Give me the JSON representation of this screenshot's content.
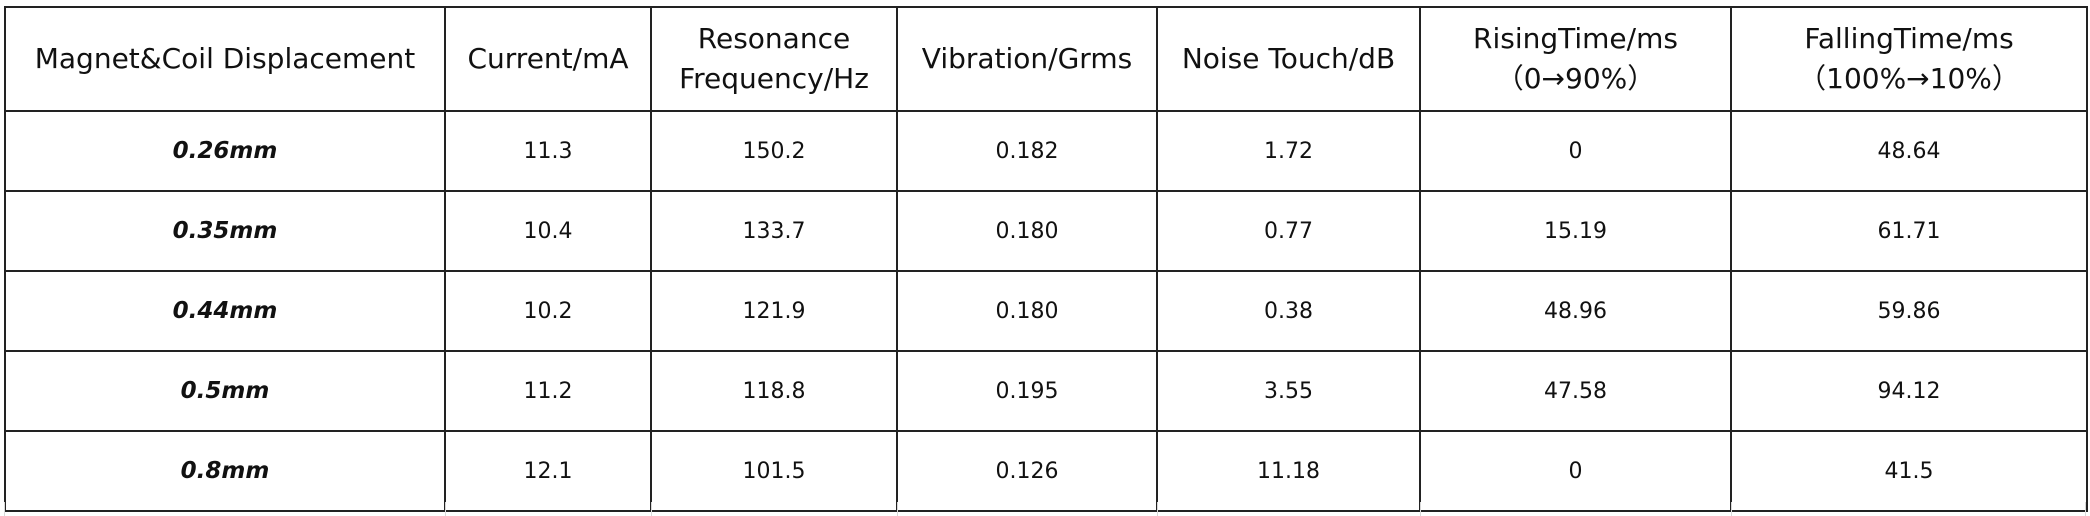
{
  "table": {
    "headers": [
      {
        "line1": "Magnet&Coil Displacement",
        "line2": ""
      },
      {
        "line1": "Current/mA",
        "line2": ""
      },
      {
        "line1": "Resonance",
        "line2": "Frequency/Hz"
      },
      {
        "line1": "Vibration/Grms",
        "line2": ""
      },
      {
        "line1": "Noise Touch/dB",
        "line2": ""
      },
      {
        "line1": "RisingTime/ms",
        "line2": "（0→90%）"
      },
      {
        "line1": "FallingTime/ms",
        "line2": "（100%→10%）"
      }
    ],
    "rows": [
      {
        "displacement": "0.26mm",
        "current": "11.3",
        "resonance": "150.2",
        "vibration": "0.182",
        "noise": "1.72",
        "rising": "0",
        "falling": "48.64"
      },
      {
        "displacement": "0.35mm",
        "current": "10.4",
        "resonance": "133.7",
        "vibration": "0.180",
        "noise": "0.77",
        "rising": "15.19",
        "falling": "61.71"
      },
      {
        "displacement": "0.44mm",
        "current": "10.2",
        "resonance": "121.9",
        "vibration": "0.180",
        "noise": "0.38",
        "rising": "48.96",
        "falling": "59.86"
      },
      {
        "displacement": "0.5mm",
        "current": "11.2",
        "resonance": "118.8",
        "vibration": "0.195",
        "noise": "3.55",
        "rising": "47.58",
        "falling": "94.12"
      },
      {
        "displacement": "0.8mm",
        "current": "12.1",
        "resonance": "101.5",
        "vibration": "0.126",
        "noise": "11.18",
        "rising": "0",
        "falling": "41.5"
      }
    ]
  }
}
